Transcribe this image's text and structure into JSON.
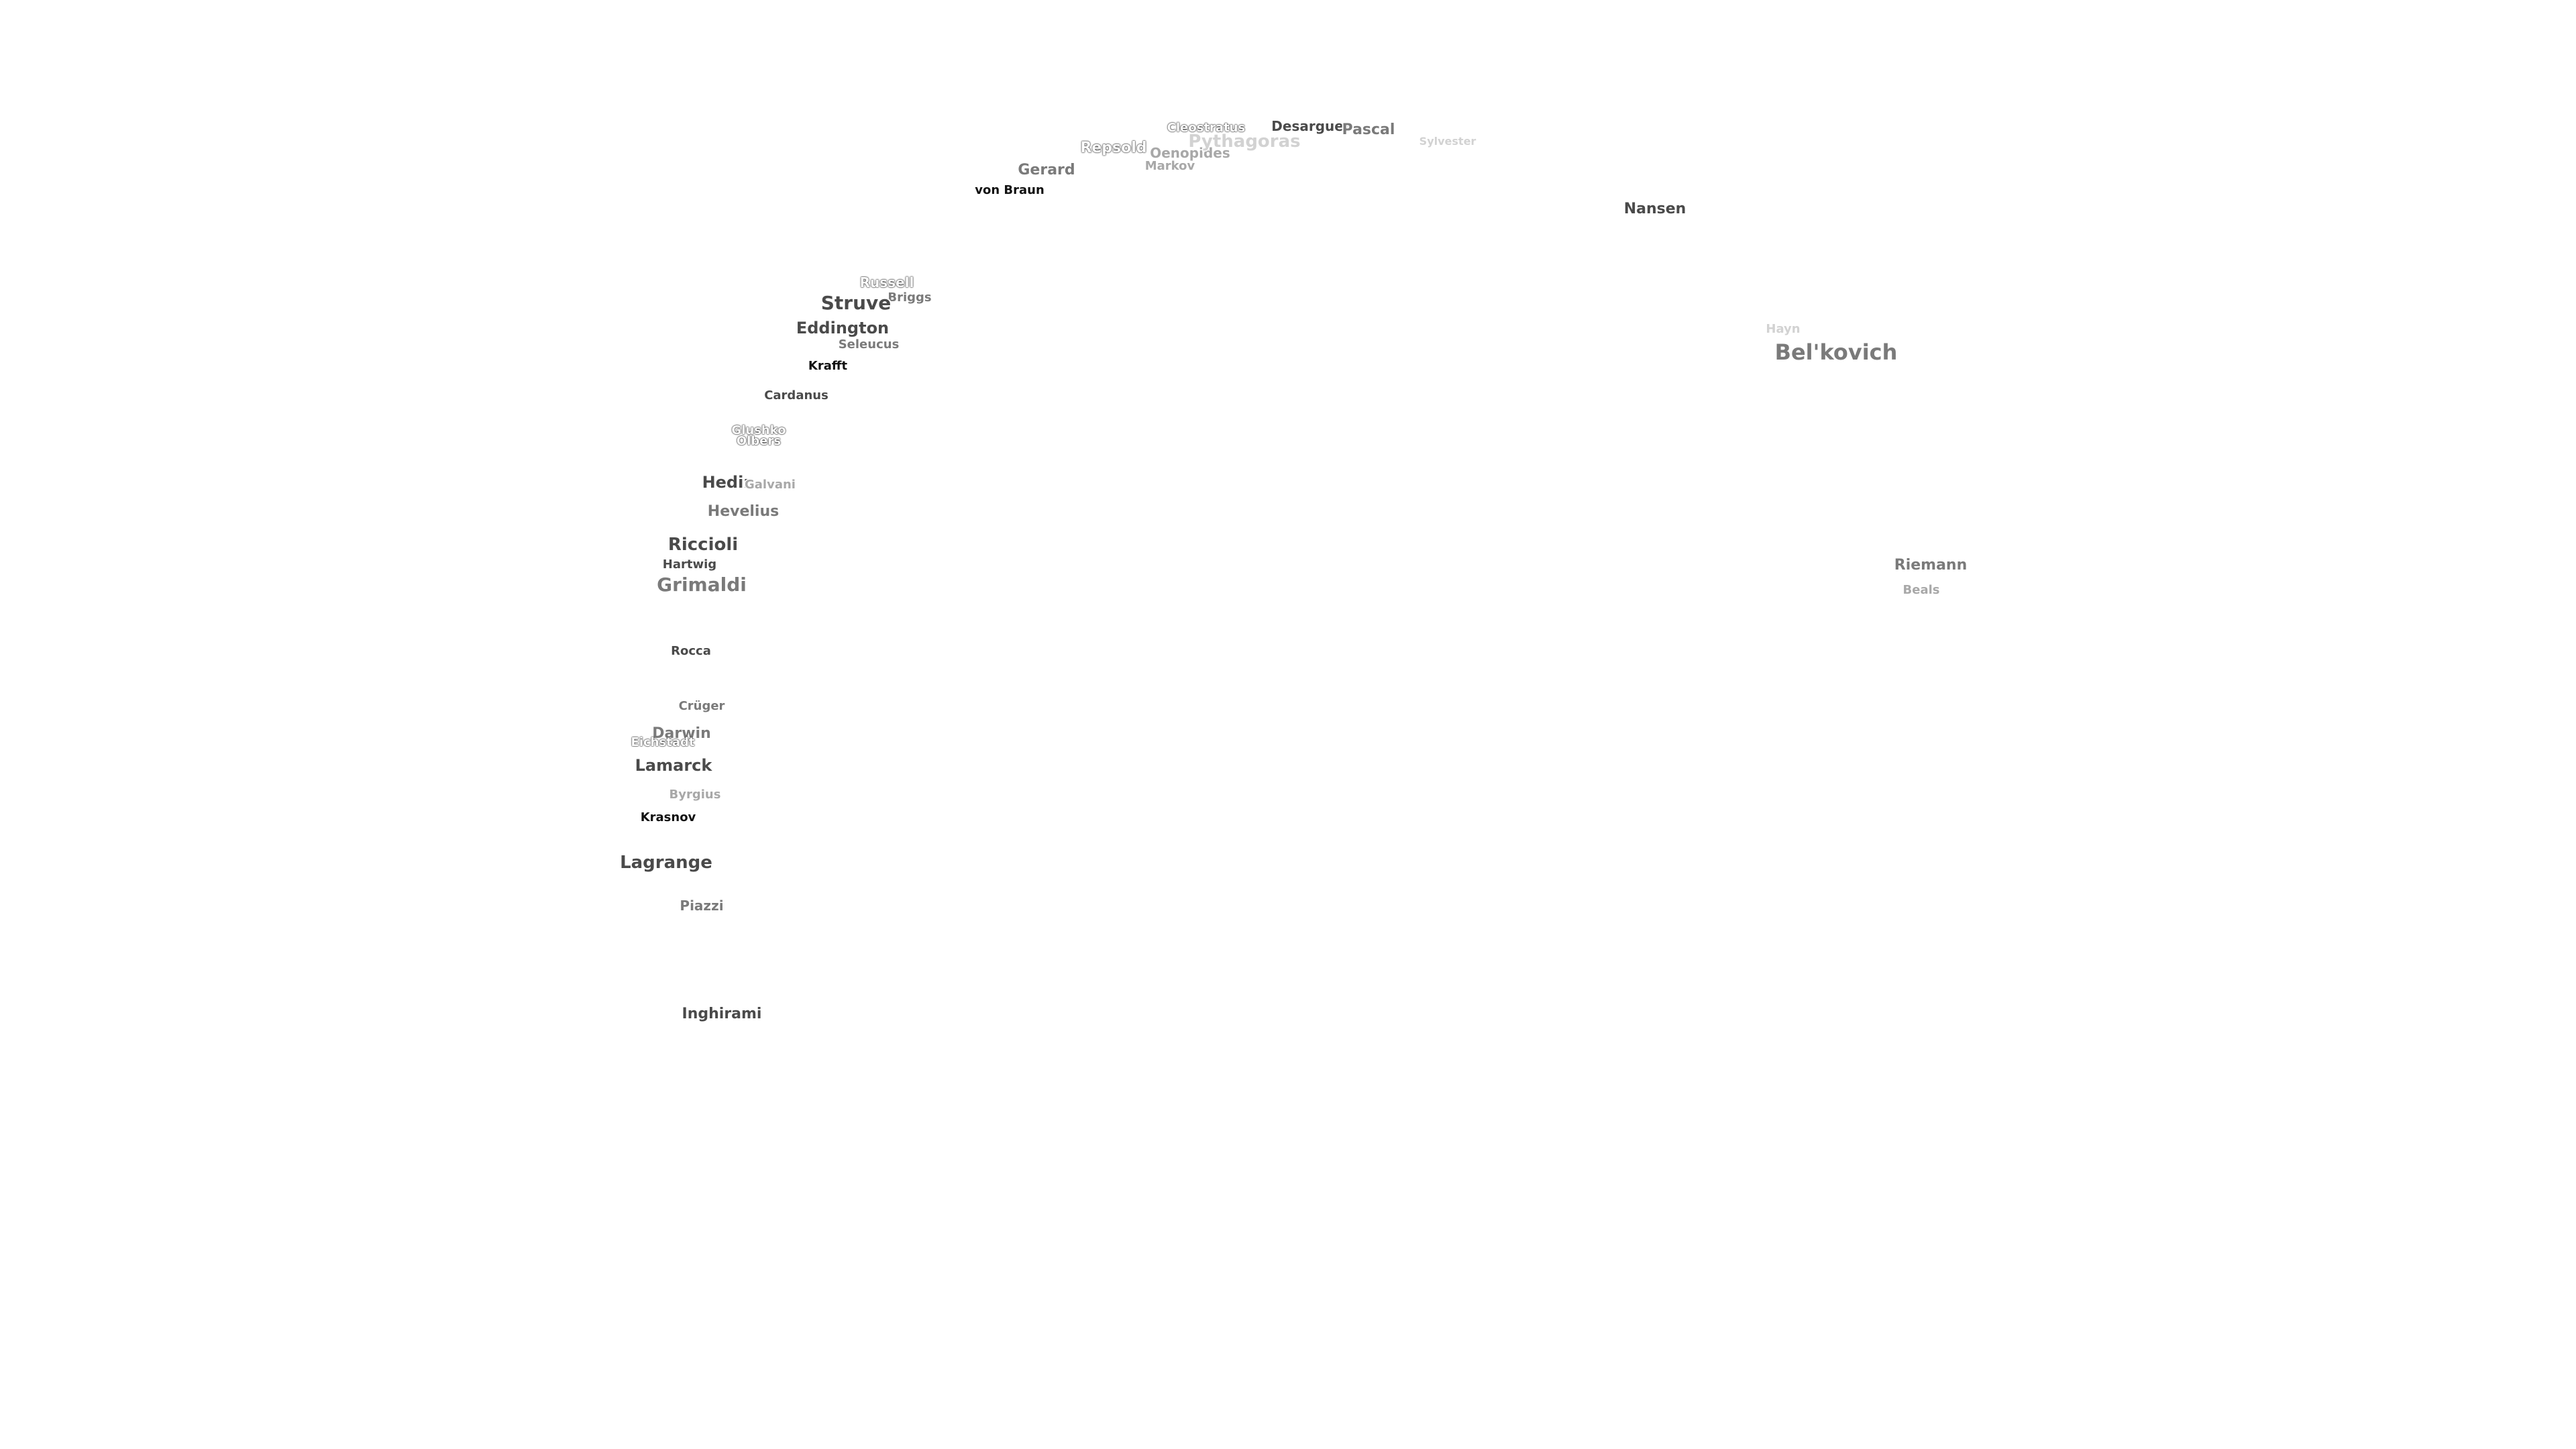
{
  "labels": {
    "cleostratus": "Cleostratus",
    "desargues": "Desargues",
    "pascal": "Pascal",
    "repsold": "Repsold",
    "oenopides": "Oenopides",
    "pythagoras": "Pythagoras",
    "sylvester": "Sylvester",
    "gerard": "Gerard",
    "markov": "Markov",
    "von_braun": "von Braun",
    "nansen": "Nansen",
    "russell": "Russell",
    "briggs": "Briggs",
    "struve": "Struve",
    "eddington": "Eddington",
    "seleucus": "Seleucus",
    "krafft": "Krafft",
    "hayn": "Hayn",
    "belkovich": "Bel'kovich",
    "cardanus": "Cardanus",
    "glushko": "Glushko",
    "olbers": "Olbers",
    "hedin": "Hedin",
    "galvani": "Galvani",
    "hevelius": "Hevelius",
    "riccioli": "Riccioli",
    "hartwig": "Hartwig",
    "grimaldi": "Grimaldi",
    "riemann": "Riemann",
    "beals": "Beals",
    "rocca": "Rocca",
    "cruger": "Crüger",
    "darwin": "Darwin",
    "eichstadt": "Eichstadt",
    "lamarck": "Lamarck",
    "byrgius": "Byrgius",
    "krasnov": "Krasnov",
    "lagrange": "Lagrange",
    "piazzi": "Piazzi",
    "inghirami": "Inghirami"
  },
  "colors": {
    "background": "#ffffff",
    "label_black": "#111111",
    "label_dark": "#4a4a4a",
    "label_mid": "#7a7a7a",
    "label_light": "#a8a8a8",
    "label_faint": "#d2d2d2"
  }
}
